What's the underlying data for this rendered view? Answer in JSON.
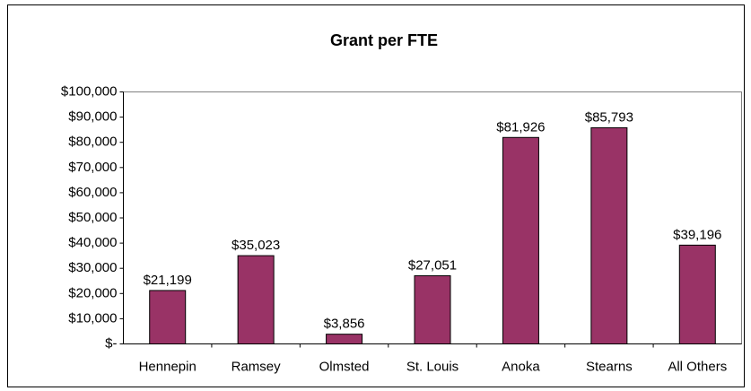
{
  "chart_data": {
    "type": "bar",
    "title": "Grant per FTE",
    "categories": [
      "Hennepin",
      "Ramsey",
      "Olmsted",
      "St. Louis",
      "Anoka",
      "Stearns",
      "All Others"
    ],
    "values": [
      21199,
      35023,
      3856,
      27051,
      81926,
      85793,
      39196
    ],
    "value_labels": [
      "$21,199",
      "$35,023",
      "$3,856",
      "$27,051",
      "$81,926",
      "$85,793",
      "$39,196"
    ],
    "color": "#993366",
    "ylim": [
      0,
      100000
    ],
    "yticks": [
      {
        "value": 0,
        "label": "$-"
      },
      {
        "value": 10000,
        "label": "$10,000"
      },
      {
        "value": 20000,
        "label": "$20,000"
      },
      {
        "value": 30000,
        "label": "$30,000"
      },
      {
        "value": 40000,
        "label": "$40,000"
      },
      {
        "value": 50000,
        "label": "$50,000"
      },
      {
        "value": 60000,
        "label": "$60,000"
      },
      {
        "value": 70000,
        "label": "$70,000"
      },
      {
        "value": 80000,
        "label": "$80,000"
      },
      {
        "value": 90000,
        "label": "$90,000"
      },
      {
        "value": 100000,
        "label": "$100,000"
      }
    ],
    "grid": false
  }
}
